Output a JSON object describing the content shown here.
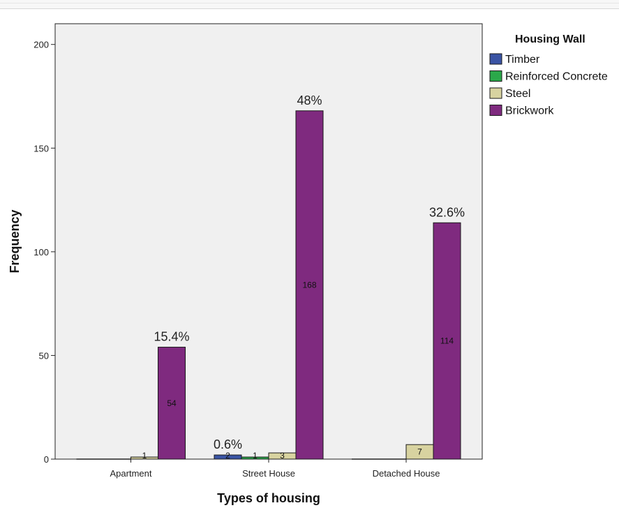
{
  "chart_data": {
    "type": "bar",
    "xlabel": "Types of housing",
    "ylabel": "Frequency",
    "ylim": [
      0,
      210
    ],
    "yticks": [
      0,
      50,
      100,
      150,
      200
    ],
    "categories": [
      "Apartment",
      "Street House",
      "Detached House"
    ],
    "legend": {
      "title": "Housing Wall",
      "placement": "right"
    },
    "series": [
      {
        "name": "Timber",
        "color": "#3a54a4",
        "values": [
          0,
          2,
          0
        ],
        "labels": [
          "",
          "2",
          ""
        ]
      },
      {
        "name": "Reinforced Concrete",
        "color": "#2ba84a",
        "values": [
          0,
          1,
          0
        ],
        "labels": [
          "",
          "1",
          ""
        ]
      },
      {
        "name": "Steel",
        "color": "#d8d3a0",
        "values": [
          1,
          3,
          7
        ],
        "labels": [
          "1",
          "3",
          "7"
        ]
      },
      {
        "name": "Brickwork",
        "color": "#7f2a7f",
        "values": [
          54,
          168,
          114
        ],
        "labels": [
          "54",
          "168",
          "114"
        ]
      }
    ],
    "annotations": [
      {
        "category": "Apartment",
        "series": "Brickwork",
        "text": "15.4%"
      },
      {
        "category": "Street House",
        "series": "Timber",
        "text": "0.6%"
      },
      {
        "category": "Street House",
        "series": "Brickwork",
        "text": "48%"
      },
      {
        "category": "Detached House",
        "series": "Brickwork",
        "text": "32.6%"
      }
    ],
    "grid": false,
    "plot_background": "#f0f0f0"
  }
}
